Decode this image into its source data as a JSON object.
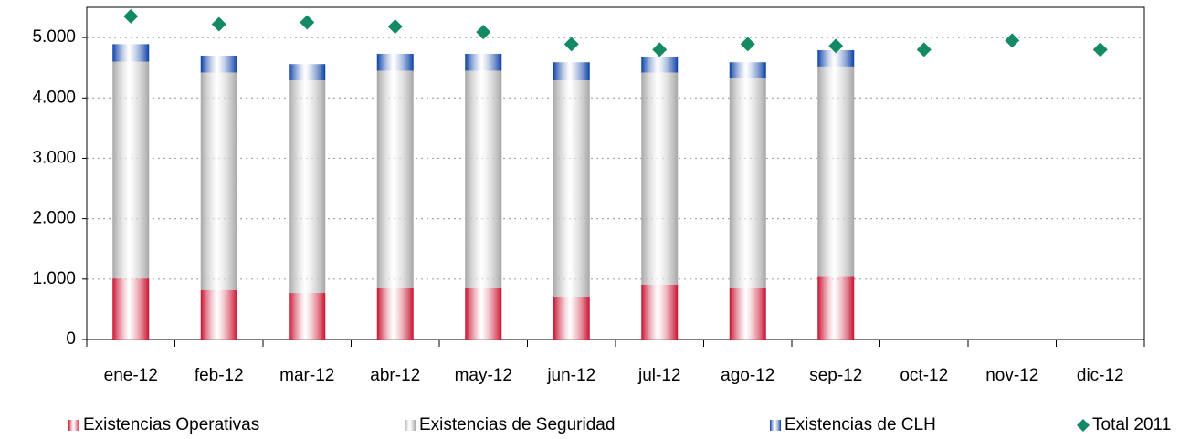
{
  "chart_data": {
    "type": "bar",
    "stacked": true,
    "categories": [
      "ene-12",
      "feb-12",
      "mar-12",
      "abr-12",
      "may-12",
      "jun-12",
      "jul-12",
      "ago-12",
      "sep-12",
      "oct-12",
      "nov-12",
      "dic-12"
    ],
    "series": [
      {
        "name": "Existencias Operativas",
        "color": "#c8102e",
        "values": [
          1010,
          820,
          770,
          850,
          850,
          710,
          910,
          850,
          1050,
          null,
          null,
          null
        ]
      },
      {
        "name": "Existencias de Seguridad",
        "color": "#a6a6a6",
        "values": [
          3590,
          3600,
          3520,
          3600,
          3600,
          3580,
          3510,
          3470,
          3470,
          null,
          null,
          null
        ]
      },
      {
        "name": "Existencias de CLH",
        "color": "#0a3fa6",
        "values": [
          290,
          280,
          270,
          280,
          280,
          300,
          250,
          270,
          270,
          null,
          null,
          null
        ]
      },
      {
        "name": "Total 2011",
        "type": "scatter",
        "color": "#138a63",
        "values": [
          5350,
          5220,
          5250,
          5180,
          5090,
          4890,
          4800,
          4890,
          4860,
          4800,
          4950,
          4800
        ]
      }
    ],
    "ylim": [
      0,
      5500
    ],
    "yticks": [
      0,
      {
        "value": 1000,
        "label": "1.000"
      },
      {
        "value": 2000,
        "label": "2.000"
      },
      {
        "value": 3000,
        "label": "3.000"
      },
      {
        "value": 4000,
        "label": "4.000"
      },
      {
        "value": 5000,
        "label": "5.000"
      }
    ],
    "grid": true,
    "legend": "bottom"
  }
}
